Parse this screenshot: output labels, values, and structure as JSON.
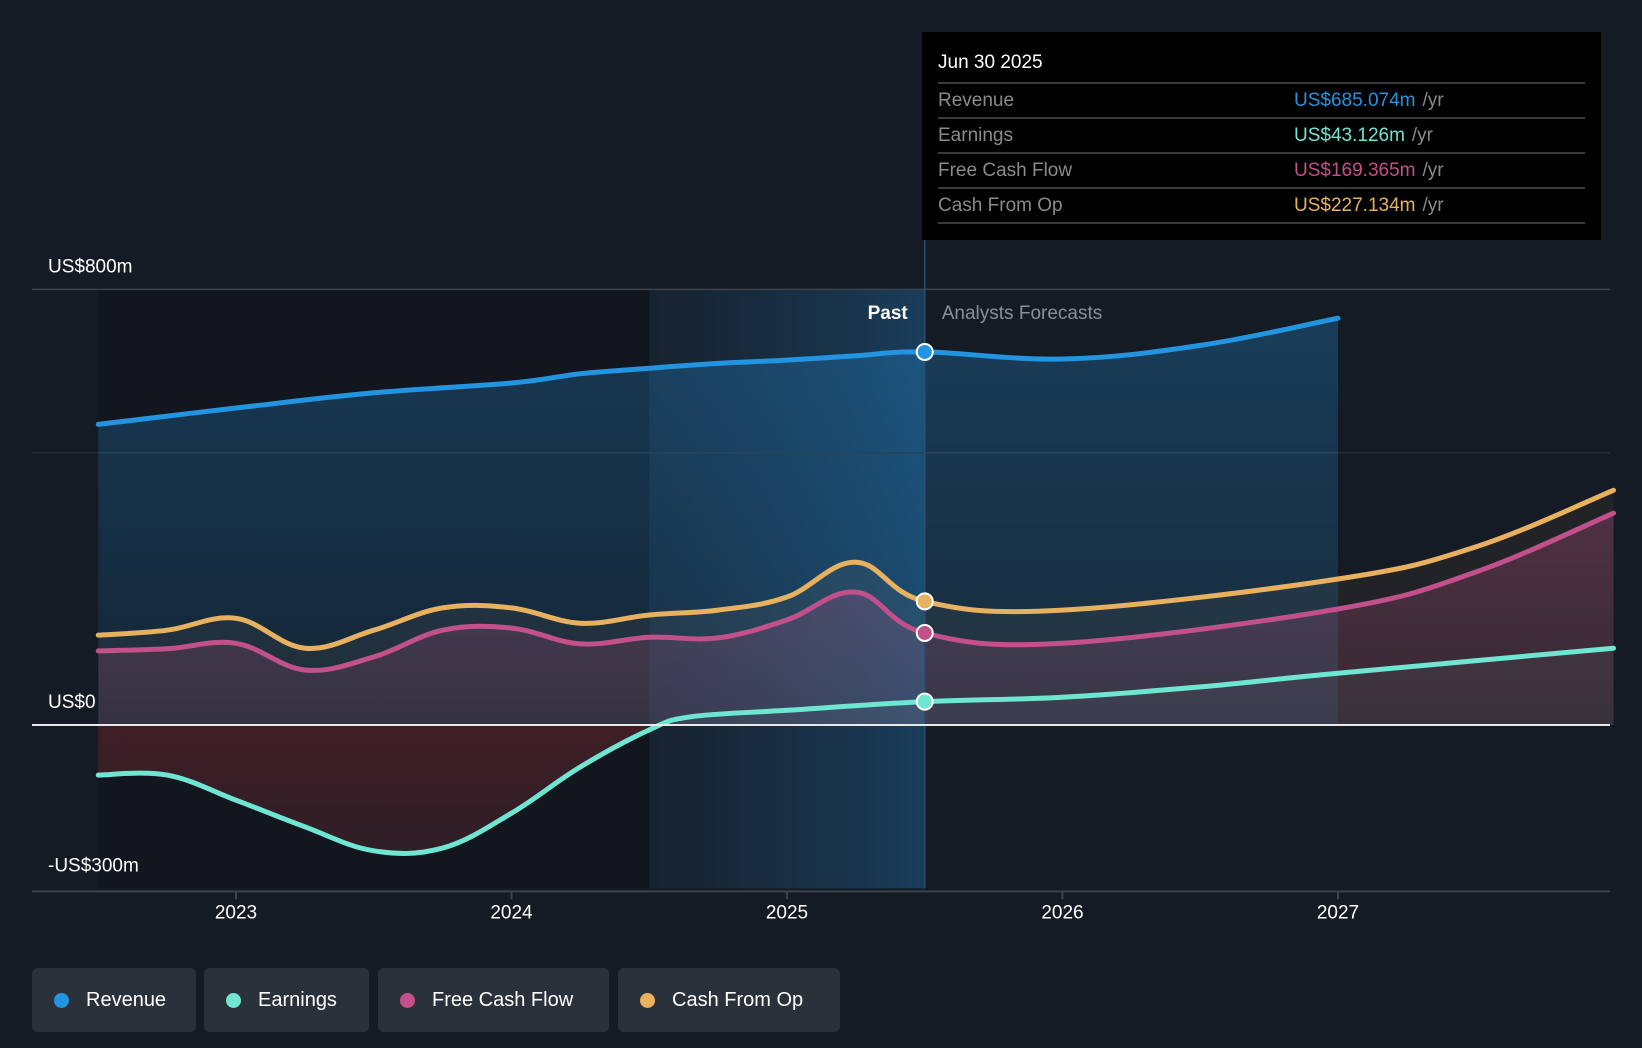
{
  "chart_data": {
    "type": "area",
    "title": "",
    "xlabel": "",
    "ylabel": "",
    "y_unit": "US$m",
    "ylim": [
      -300,
      800
    ],
    "xlim": [
      2022.5,
      2028.0
    ],
    "y_ticks": [
      {
        "value": 800,
        "label": "US$800m"
      },
      {
        "value": 500,
        "label": ""
      },
      {
        "value": 0,
        "label": "US$0"
      },
      {
        "value": -300,
        "label": "-US$300m"
      }
    ],
    "x_ticks": [
      {
        "value": 2023,
        "label": "2023"
      },
      {
        "value": 2024,
        "label": "2024"
      },
      {
        "value": 2025,
        "label": "2025"
      },
      {
        "value": 2026,
        "label": "2026"
      },
      {
        "value": 2027,
        "label": "2027"
      }
    ],
    "grid": true,
    "legend_position": "bottom-left",
    "past_label": "Past",
    "forecast_label": "Analysts Forecasts",
    "past_highlight_range": [
      2024.5,
      2025.5
    ],
    "divider_x": 2025.5,
    "series": [
      {
        "name": "Revenue",
        "color": "#2394e0",
        "x": [
          2022.5,
          2023.0,
          2023.5,
          2024.0,
          2024.25,
          2024.5,
          2024.75,
          2025.0,
          2025.25,
          2025.5,
          2026.0,
          2026.5,
          2027.0
        ],
        "values": [
          552,
          582,
          610,
          628,
          645,
          655,
          664,
          670,
          678,
          685,
          672,
          697,
          747
        ]
      },
      {
        "name": "Earnings",
        "color": "#6ee6d2",
        "x": [
          2022.5,
          2022.75,
          2023.0,
          2023.25,
          2023.5,
          2023.75,
          2024.0,
          2024.25,
          2024.5,
          2024.65,
          2025.0,
          2025.5,
          2026.0,
          2026.5,
          2027.0,
          2028.0
        ],
        "values": [
          -92,
          -92,
          -138,
          -187,
          -231,
          -226,
          -162,
          -77,
          -9,
          15,
          27,
          43,
          51,
          70,
          95,
          141
        ]
      },
      {
        "name": "Free Cash Flow",
        "color": "#c2508a",
        "x": [
          2022.5,
          2022.75,
          2023.0,
          2023.25,
          2023.5,
          2023.75,
          2024.0,
          2024.25,
          2024.5,
          2024.75,
          2025.0,
          2025.25,
          2025.5,
          2026.0,
          2027.0,
          2027.5,
          2028.0
        ],
        "values": [
          136,
          140,
          150,
          101,
          125,
          174,
          178,
          149,
          161,
          160,
          193,
          244,
          169,
          150,
          213,
          281,
          389
        ]
      },
      {
        "name": "Cash From Op",
        "color": "#e8b15f",
        "x": [
          2022.5,
          2022.75,
          2023.0,
          2023.25,
          2023.5,
          2023.75,
          2024.0,
          2024.25,
          2024.5,
          2024.75,
          2025.0,
          2025.25,
          2025.5,
          2026.0,
          2027.0,
          2027.5,
          2028.0
        ],
        "values": [
          165,
          174,
          196,
          141,
          174,
          215,
          215,
          187,
          202,
          211,
          235,
          299,
          227,
          211,
          268,
          327,
          431
        ]
      }
    ]
  },
  "tooltip": {
    "date": "Jun 30 2025",
    "unit": "/yr",
    "rows": [
      {
        "label": "Revenue",
        "value": "US$685.074m",
        "color": "#2394e0"
      },
      {
        "label": "Earnings",
        "value": "US$43.126m",
        "color": "#6ee6d2"
      },
      {
        "label": "Free Cash Flow",
        "value": "US$169.365m",
        "color": "#c2508a"
      },
      {
        "label": "Cash From Op",
        "value": "US$227.134m",
        "color": "#e8b15f"
      }
    ]
  },
  "legend": [
    {
      "label": "Revenue",
      "color": "#2394e0"
    },
    {
      "label": "Earnings",
      "color": "#6ee6d2"
    },
    {
      "label": "Free Cash Flow",
      "color": "#c2508a"
    },
    {
      "label": "Cash From Op",
      "color": "#e8b15f"
    }
  ]
}
